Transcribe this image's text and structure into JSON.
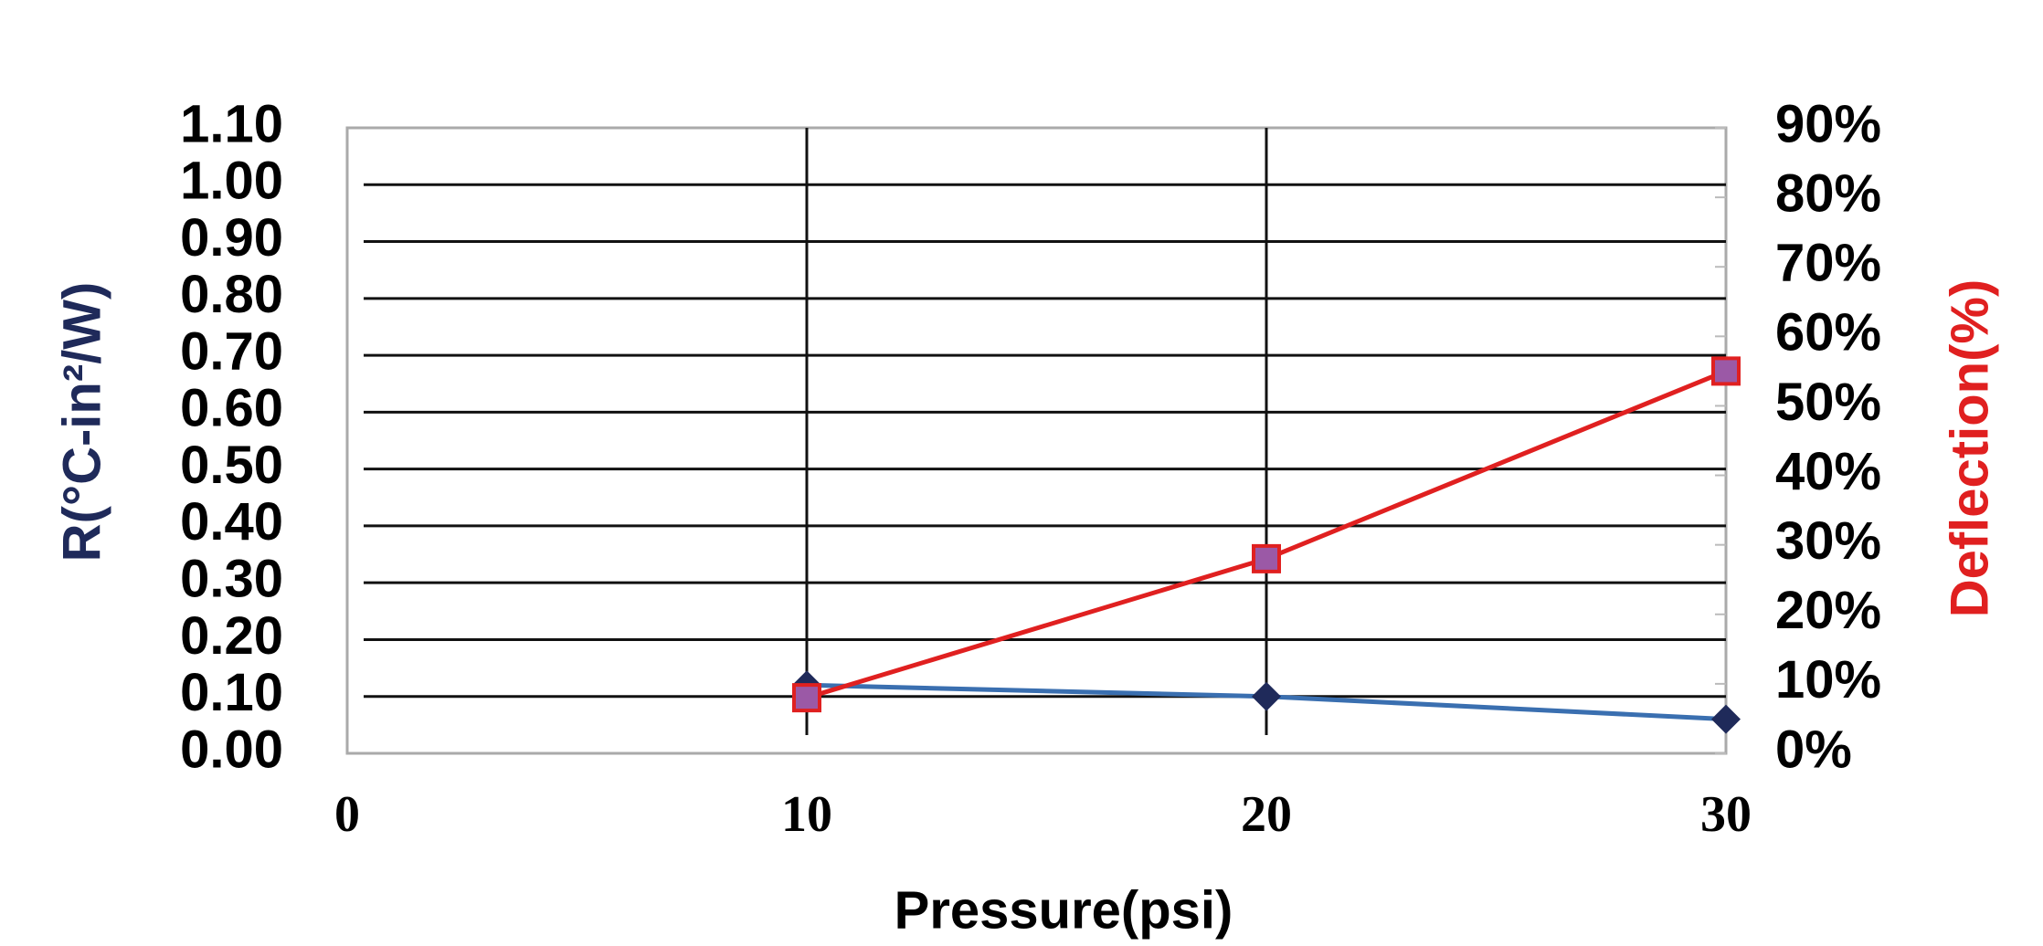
{
  "chart_data": {
    "type": "line",
    "x_label": "Pressure(psi)",
    "y_label": "R(°C-in²/W)",
    "y2_label": "Deflection(%)",
    "y_label_color": "#1f2a5a",
    "y2_label_color": "#e02020",
    "xlim": [
      0,
      30
    ],
    "xticks": [
      0,
      10,
      20,
      30
    ],
    "ylim": [
      0,
      1.1
    ],
    "yticks": [
      {
        "value": 0,
        "label": "0.00"
      },
      {
        "value": 0.1,
        "label": "0.10"
      },
      {
        "value": 0.2,
        "label": "0.20"
      },
      {
        "value": 0.3,
        "label": "0.30"
      },
      {
        "value": 0.4,
        "label": "0.40"
      },
      {
        "value": 0.5,
        "label": "0.50"
      },
      {
        "value": 0.6,
        "label": "0.60"
      },
      {
        "value": 0.7,
        "label": "0.70"
      },
      {
        "value": 0.8,
        "label": "0.80"
      },
      {
        "value": 0.9,
        "label": "0.90"
      },
      {
        "value": 1.0,
        "label": "1.00"
      },
      {
        "value": 1.1,
        "label": "1.10"
      }
    ],
    "y2lim": [
      0,
      90
    ],
    "y2ticks": [
      {
        "value": 0,
        "label": "0%"
      },
      {
        "value": 10,
        "label": "10%"
      },
      {
        "value": 20,
        "label": "20%"
      },
      {
        "value": 30,
        "label": "30%"
      },
      {
        "value": 40,
        "label": "40%"
      },
      {
        "value": 50,
        "label": "50%"
      },
      {
        "value": 60,
        "label": "60%"
      },
      {
        "value": 70,
        "label": "70%"
      },
      {
        "value": 80,
        "label": "80%"
      },
      {
        "value": 90,
        "label": "90%"
      }
    ],
    "grid": true,
    "series": [
      {
        "x": [
          10,
          20,
          30
        ],
        "values": [
          0.12,
          0.1,
          0.06
        ],
        "color": "#3a6fb0",
        "marker": "diamond",
        "marker_color": "#1f2a5a"
      },
      {
        "x": [
          10,
          20,
          30
        ],
        "values": [
          8,
          28,
          55
        ],
        "color": "#e02020",
        "marker": "square",
        "marker_color": "#9b59a6",
        "axis": "y2"
      }
    ]
  }
}
